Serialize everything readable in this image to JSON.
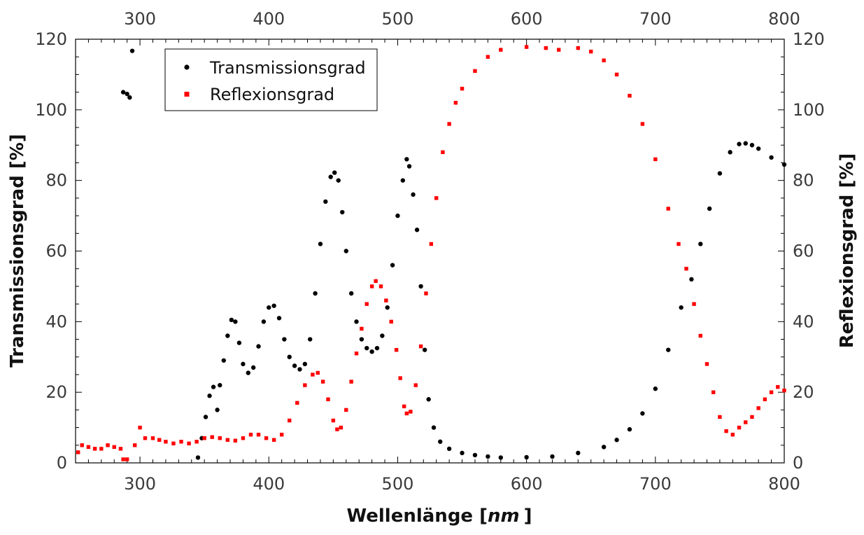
{
  "chart_data": {
    "type": "scatter",
    "xlabel_main": "Wellenlänge [",
    "xlabel_unit": "nm",
    "xlabel_close": "]",
    "ylabel_left": "Transmissionsgrad [%]",
    "ylabel_right": "Reflexionsgrad [%]",
    "xlim": [
      250,
      800
    ],
    "ylim": [
      0,
      120
    ],
    "x_ticks": [
      300,
      400,
      500,
      600,
      700,
      800
    ],
    "y_ticks": [
      0,
      20,
      40,
      60,
      80,
      100,
      120
    ],
    "legend_position": "top-left",
    "grid": false,
    "series": [
      {
        "name": "Transmissionsgrad",
        "color": "#000000",
        "marker": "circle",
        "points": [
          [
            287,
            105
          ],
          [
            290,
            104.5
          ],
          [
            292,
            103.5
          ],
          [
            294,
            116.7
          ],
          [
            345,
            1.5
          ],
          [
            348,
            7
          ],
          [
            351,
            13
          ],
          [
            354,
            19
          ],
          [
            357,
            21.5
          ],
          [
            360,
            15
          ],
          [
            362,
            22
          ],
          [
            365,
            29
          ],
          [
            368,
            36
          ],
          [
            371,
            40.5
          ],
          [
            374,
            40
          ],
          [
            377,
            34
          ],
          [
            380,
            28
          ],
          [
            384,
            25.5
          ],
          [
            388,
            27
          ],
          [
            392,
            33
          ],
          [
            396,
            40
          ],
          [
            400,
            44
          ],
          [
            404,
            44.5
          ],
          [
            408,
            41
          ],
          [
            412,
            35
          ],
          [
            416,
            30
          ],
          [
            420,
            27.5
          ],
          [
            424,
            26.5
          ],
          [
            428,
            28
          ],
          [
            432,
            35
          ],
          [
            436,
            48
          ],
          [
            440,
            62
          ],
          [
            444,
            74
          ],
          [
            448,
            81
          ],
          [
            451,
            82.2
          ],
          [
            454,
            80
          ],
          [
            457,
            71
          ],
          [
            460,
            60
          ],
          [
            464,
            48
          ],
          [
            468,
            40
          ],
          [
            472,
            35
          ],
          [
            476,
            32.5
          ],
          [
            480,
            31.5
          ],
          [
            484,
            32.5
          ],
          [
            488,
            36
          ],
          [
            492,
            44
          ],
          [
            496,
            56
          ],
          [
            500,
            70
          ],
          [
            504,
            80
          ],
          [
            507,
            86
          ],
          [
            509,
            84
          ],
          [
            512,
            76
          ],
          [
            515,
            66
          ],
          [
            518,
            50
          ],
          [
            521,
            32
          ],
          [
            524,
            18
          ],
          [
            528,
            10
          ],
          [
            533,
            6
          ],
          [
            540,
            4
          ],
          [
            550,
            2.8
          ],
          [
            560,
            2.2
          ],
          [
            570,
            1.8
          ],
          [
            580,
            1.5
          ],
          [
            600,
            1.6
          ],
          [
            620,
            1.8
          ],
          [
            640,
            2.8
          ],
          [
            660,
            4.5
          ],
          [
            670,
            6.5
          ],
          [
            680,
            9.5
          ],
          [
            690,
            14
          ],
          [
            700,
            21
          ],
          [
            710,
            32
          ],
          [
            720,
            44
          ],
          [
            728,
            52
          ],
          [
            735,
            62
          ],
          [
            742,
            72
          ],
          [
            750,
            82
          ],
          [
            758,
            88
          ],
          [
            765,
            90.3
          ],
          [
            770,
            90.5
          ],
          [
            775,
            90
          ],
          [
            780,
            89
          ],
          [
            790,
            86.5
          ],
          [
            800,
            84.5
          ]
        ]
      },
      {
        "name": "Reflexionsgrad",
        "color": "#ff0000",
        "marker": "square",
        "points": [
          [
            252,
            3
          ],
          [
            255,
            5
          ],
          [
            260,
            4.5
          ],
          [
            265,
            4
          ],
          [
            270,
            4
          ],
          [
            275,
            5
          ],
          [
            280,
            4.5
          ],
          [
            285,
            4
          ],
          [
            287,
            1
          ],
          [
            290,
            1
          ],
          [
            296,
            5
          ],
          [
            300,
            10
          ],
          [
            304,
            7
          ],
          [
            310,
            7
          ],
          [
            315,
            6.5
          ],
          [
            320,
            6
          ],
          [
            326,
            5.5
          ],
          [
            332,
            6
          ],
          [
            338,
            5.5
          ],
          [
            344,
            6
          ],
          [
            350,
            7
          ],
          [
            356,
            7.3
          ],
          [
            362,
            7
          ],
          [
            368,
            6.5
          ],
          [
            374,
            6.3
          ],
          [
            380,
            7
          ],
          [
            386,
            8
          ],
          [
            392,
            8
          ],
          [
            398,
            7
          ],
          [
            404,
            6.5
          ],
          [
            410,
            8
          ],
          [
            416,
            12
          ],
          [
            422,
            17
          ],
          [
            428,
            22
          ],
          [
            434,
            25
          ],
          [
            438,
            25.5
          ],
          [
            442,
            23
          ],
          [
            446,
            18
          ],
          [
            450,
            12
          ],
          [
            453,
            9.5
          ],
          [
            456,
            10
          ],
          [
            460,
            15
          ],
          [
            464,
            23
          ],
          [
            468,
            31
          ],
          [
            472,
            38
          ],
          [
            476,
            45
          ],
          [
            480,
            50
          ],
          [
            483,
            51.5
          ],
          [
            487,
            50
          ],
          [
            491,
            46
          ],
          [
            495,
            40
          ],
          [
            499,
            32
          ],
          [
            502,
            24
          ],
          [
            505,
            16
          ],
          [
            507,
            14
          ],
          [
            510,
            14.5
          ],
          [
            514,
            22
          ],
          [
            518,
            33
          ],
          [
            522,
            48
          ],
          [
            526,
            62
          ],
          [
            530,
            75
          ],
          [
            535,
            88
          ],
          [
            540,
            96
          ],
          [
            545,
            102
          ],
          [
            550,
            106
          ],
          [
            560,
            111
          ],
          [
            570,
            115
          ],
          [
            580,
            117
          ],
          [
            600,
            117.8
          ],
          [
            615,
            117.5
          ],
          [
            625,
            117
          ],
          [
            640,
            117.5
          ],
          [
            650,
            116.5
          ],
          [
            660,
            114
          ],
          [
            670,
            110
          ],
          [
            680,
            104
          ],
          [
            690,
            96
          ],
          [
            700,
            86
          ],
          [
            710,
            72
          ],
          [
            718,
            62
          ],
          [
            724,
            55
          ],
          [
            730,
            45
          ],
          [
            735,
            36
          ],
          [
            740,
            28
          ],
          [
            745,
            20
          ],
          [
            750,
            13
          ],
          [
            755,
            9
          ],
          [
            760,
            8
          ],
          [
            765,
            10
          ],
          [
            770,
            11.5
          ],
          [
            775,
            13
          ],
          [
            780,
            15.5
          ],
          [
            785,
            18
          ],
          [
            790,
            20
          ],
          [
            795,
            21.5
          ],
          [
            800,
            20.5
          ]
        ]
      }
    ]
  }
}
